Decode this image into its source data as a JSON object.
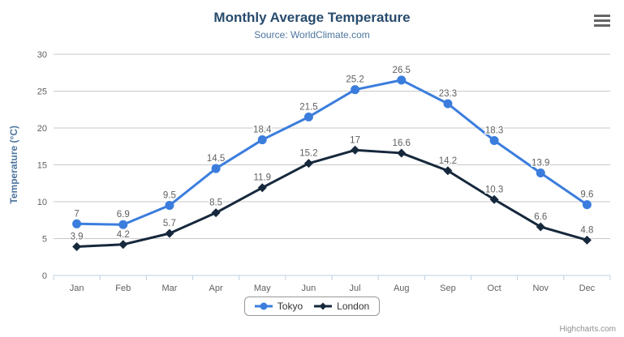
{
  "header": {
    "title": "Monthly Average Temperature",
    "subtitle": "Source: WorldClimate.com"
  },
  "icons": {
    "context_menu": "hamburger"
  },
  "chart_data": {
    "type": "line",
    "title": "Monthly Average Temperature",
    "subtitle": "Source: WorldClimate.com",
    "categories": [
      "Jan",
      "Feb",
      "Mar",
      "Apr",
      "May",
      "Jun",
      "Jul",
      "Aug",
      "Sep",
      "Oct",
      "Nov",
      "Dec"
    ],
    "series": [
      {
        "name": "Tokyo",
        "color": "#3b7ddd",
        "marker": "circle",
        "values": [
          7,
          6.9,
          9.5,
          14.5,
          18.4,
          21.5,
          25.2,
          26.5,
          23.3,
          18.3,
          13.9,
          9.6
        ]
      },
      {
        "name": "London",
        "color": "#16283c",
        "marker": "diamond",
        "values": [
          3.9,
          4.2,
          5.7,
          8.5,
          11.9,
          15.2,
          17,
          16.6,
          14.2,
          10.3,
          6.6,
          4.8
        ]
      }
    ],
    "xlabel": "",
    "ylabel": "Temperature (°C)",
    "ylim": [
      0,
      30
    ],
    "ytick_step": 5,
    "yticks": [
      0,
      5,
      10,
      15,
      20,
      25,
      30
    ],
    "grid": true,
    "legend_position": "bottom",
    "data_labels": true
  },
  "credits": {
    "label": "Highcharts.com"
  },
  "colors": {
    "title": "#274b6d",
    "subtitle": "#4d759e",
    "axis_title": "#4d759e",
    "tick_label": "#606060",
    "data_label": "#606060",
    "grid_line": "#c9c9c9",
    "axis_line": "#c0d0e0",
    "legend_border": "#999999",
    "legend_text": "#333333",
    "credits": "#909090",
    "menu_icon": "#666666"
  }
}
